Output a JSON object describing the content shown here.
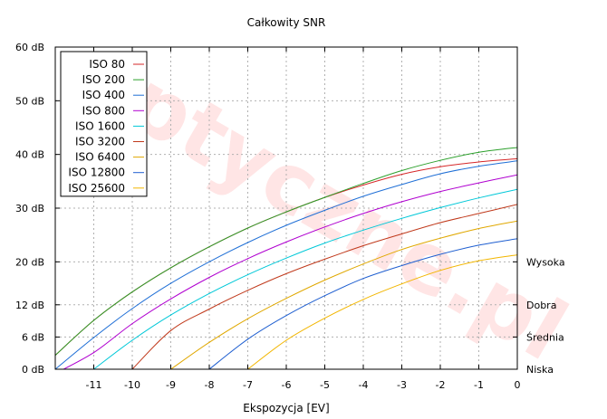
{
  "chart_data": {
    "type": "line",
    "title": "Całkowity SNR",
    "xlabel": "Ekspozycja [EV]",
    "ylabel": "",
    "xlim": [
      -12,
      0
    ],
    "ylim": [
      0,
      60
    ],
    "x_ticks": [
      -11,
      -10,
      -9,
      -8,
      -7,
      -6,
      -5,
      -4,
      -3,
      -2,
      -1,
      0
    ],
    "x_tick_labels": [
      "-11",
      "-10",
      "-9",
      "-8",
      "-7",
      "-6",
      "-5",
      "-4",
      "-3",
      "-2",
      "-1",
      "0"
    ],
    "y_ticks": [
      0,
      6,
      12,
      20,
      30,
      40,
      50,
      60
    ],
    "y_tick_labels": [
      "0 dB",
      "6 dB",
      "12 dB",
      "20 dB",
      "30 dB",
      "40 dB",
      "50 dB",
      "60 dB"
    ],
    "right_labels": [
      {
        "y": 20,
        "text": "Wysoka"
      },
      {
        "y": 12,
        "text": "Dobra"
      },
      {
        "y": 6,
        "text": "Średnia"
      },
      {
        "y": 0,
        "text": "Niska"
      }
    ],
    "grid": true,
    "legend_position": "top-left",
    "watermark": "optyczne.pl",
    "series": [
      {
        "name": "ISO 80",
        "color": "#d62728",
        "x": [
          -12,
          -11,
          -10,
          -9,
          -8,
          -7,
          -6,
          -5,
          -4,
          -3,
          -2,
          -1,
          0
        ],
        "y": [
          2.6,
          9.1,
          14.4,
          18.9,
          22.8,
          26.3,
          29.3,
          32.0,
          34.3,
          36.3,
          37.7,
          38.6,
          39.2
        ]
      },
      {
        "name": "ISO 200",
        "color": "#2ca02c",
        "x": [
          -12,
          -11,
          -10,
          -9,
          -8,
          -7,
          -6,
          -5,
          -4,
          -3,
          -2,
          -1,
          0
        ],
        "y": [
          2.6,
          9.1,
          14.4,
          18.9,
          22.8,
          26.3,
          29.3,
          32.0,
          34.6,
          37.0,
          38.9,
          40.4,
          41.3
        ]
      },
      {
        "name": "ISO 400",
        "color": "#1f6fd6",
        "x": [
          -12,
          -11,
          -10,
          -9,
          -8,
          -7,
          -6,
          -5,
          -4,
          -3,
          -2,
          -1,
          0
        ],
        "y": [
          0.0,
          5.9,
          11.3,
          16.0,
          20.0,
          23.6,
          26.8,
          29.6,
          32.2,
          34.4,
          36.4,
          37.8,
          38.8
        ]
      },
      {
        "name": "ISO 800",
        "color": "#b000d0",
        "x": [
          -12,
          -11,
          -10,
          -9,
          -8,
          -7,
          -6,
          -5,
          -4,
          -3,
          -2,
          -1,
          0
        ],
        "y": [
          -0.8,
          3.1,
          8.5,
          13.1,
          17.1,
          20.6,
          23.7,
          26.5,
          29.0,
          31.2,
          33.1,
          34.7,
          36.2
        ]
      },
      {
        "name": "ISO 1600",
        "color": "#00c8d8",
        "x": [
          -11,
          -10,
          -9,
          -8,
          -7,
          -6,
          -5,
          -4,
          -3,
          -2,
          -1,
          0
        ],
        "y": [
          0.0,
          5.4,
          10.1,
          14.1,
          17.6,
          20.7,
          23.5,
          25.9,
          28.1,
          30.1,
          31.9,
          33.5
        ]
      },
      {
        "name": "ISO 3200",
        "color": "#c0391b",
        "x": [
          -10,
          -9,
          -8,
          -7,
          -6,
          -5,
          -4,
          -3,
          -2,
          -1,
          0
        ],
        "y": [
          0.0,
          7.2,
          11.2,
          14.7,
          17.8,
          20.5,
          23.0,
          25.2,
          27.3,
          29.0,
          30.7
        ]
      },
      {
        "name": "ISO 6400",
        "color": "#e0a800",
        "x": [
          -9,
          -8,
          -7,
          -6,
          -5,
          -4,
          -3,
          -2,
          -1,
          0
        ],
        "y": [
          0.0,
          5.0,
          9.4,
          13.2,
          16.6,
          19.6,
          22.3,
          24.4,
          26.2,
          27.6
        ]
      },
      {
        "name": "ISO 12800",
        "color": "#1f5fd0",
        "x": [
          -8,
          -7,
          -6,
          -5,
          -4,
          -3,
          -2,
          -1,
          0
        ],
        "y": [
          0.0,
          5.6,
          10.0,
          13.7,
          16.9,
          19.3,
          21.4,
          23.1,
          24.3
        ]
      },
      {
        "name": "ISO 25600",
        "color": "#f2b600",
        "x": [
          -7,
          -6,
          -5,
          -4,
          -3,
          -2,
          -1,
          0
        ],
        "y": [
          0.0,
          5.4,
          9.5,
          13.0,
          15.9,
          18.4,
          20.2,
          21.3
        ]
      }
    ]
  }
}
